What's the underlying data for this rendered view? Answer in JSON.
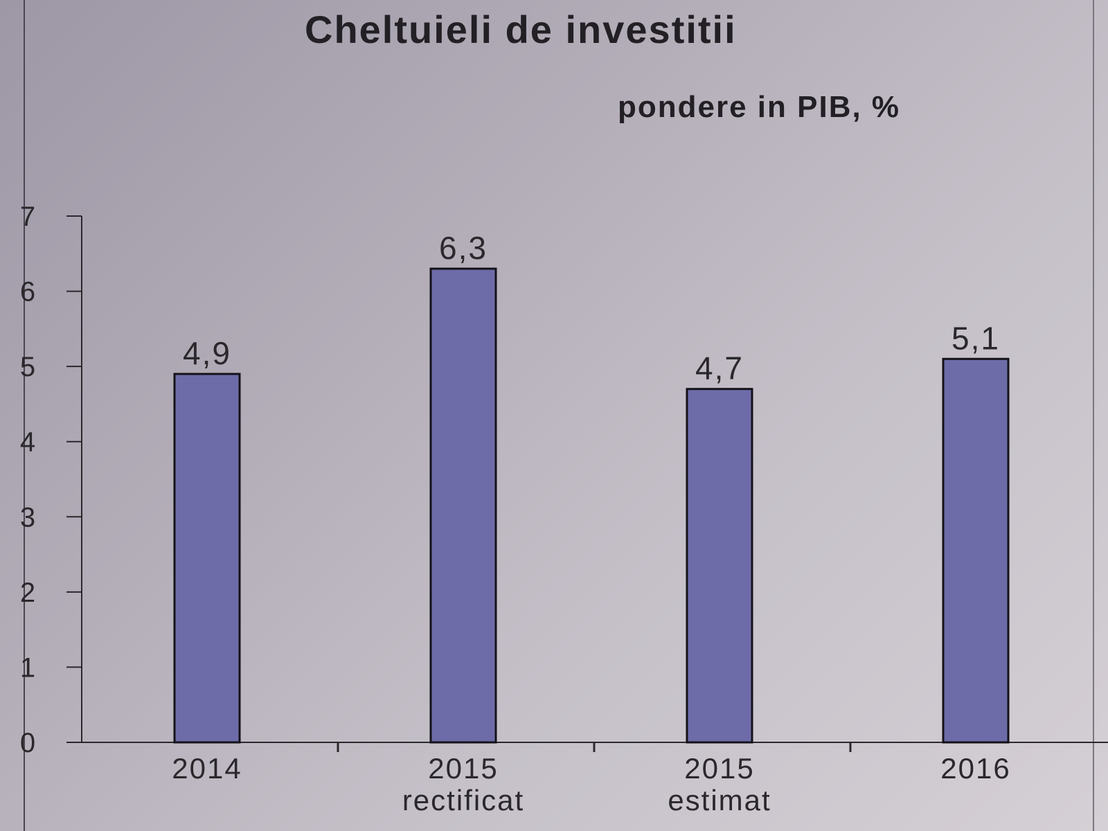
{
  "chart_data": {
    "type": "bar",
    "title": "Cheltuieli de investitii",
    "subtitle": "pondere in PIB, %",
    "categories": [
      [
        "2014"
      ],
      [
        "2015",
        "rectificat"
      ],
      [
        "2015",
        "estimat"
      ],
      [
        "2016"
      ]
    ],
    "values": [
      4.9,
      6.3,
      4.7,
      5.1
    ],
    "data_labels": [
      "4,9",
      "6,3",
      "4,7",
      "5,1"
    ],
    "y_ticks": [
      "0",
      "1",
      "2",
      "3",
      "4",
      "5",
      "6",
      "7"
    ],
    "ylim": [
      0,
      7
    ],
    "xlabel": "",
    "ylabel": "",
    "grid": false,
    "legend": "none",
    "colors": {
      "bar_fill": "#6e6ca8",
      "bar_stroke": "#141218",
      "axis": "#2a282c"
    }
  }
}
